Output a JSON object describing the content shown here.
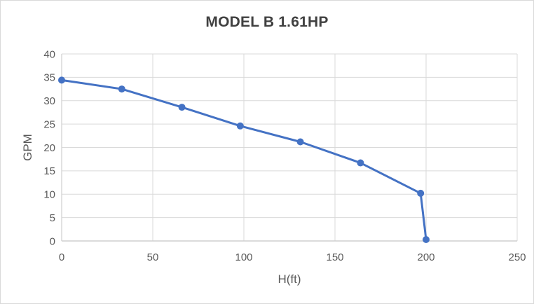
{
  "chart_data": {
    "type": "line",
    "title": "MODEL B 1.61HP",
    "xlabel": "H(ft)",
    "ylabel": "GPM",
    "xlim": [
      0,
      250
    ],
    "ylim": [
      0,
      40
    ],
    "x_ticks": [
      0,
      50,
      100,
      150,
      200,
      250
    ],
    "y_ticks": [
      0,
      5,
      10,
      15,
      20,
      25,
      30,
      35,
      40
    ],
    "grid": true,
    "legend": false,
    "series": [
      {
        "x": [
          0,
          33,
          66,
          98,
          131,
          164,
          197,
          200
        ],
        "y": [
          34.4,
          32.5,
          28.6,
          24.6,
          21.2,
          16.7,
          10.2,
          0.3
        ],
        "color": "#4472C4",
        "marker": "circle",
        "line_width": 3,
        "marker_diameter": 10
      }
    ]
  },
  "colors": {
    "line": "#4472C4",
    "grid": "#D9D9D9",
    "axis_line": "#CFCFCF",
    "axis_text": "#595959",
    "title_text": "#404040",
    "border": "#D9D9D9",
    "background": "#FFFFFF"
  }
}
